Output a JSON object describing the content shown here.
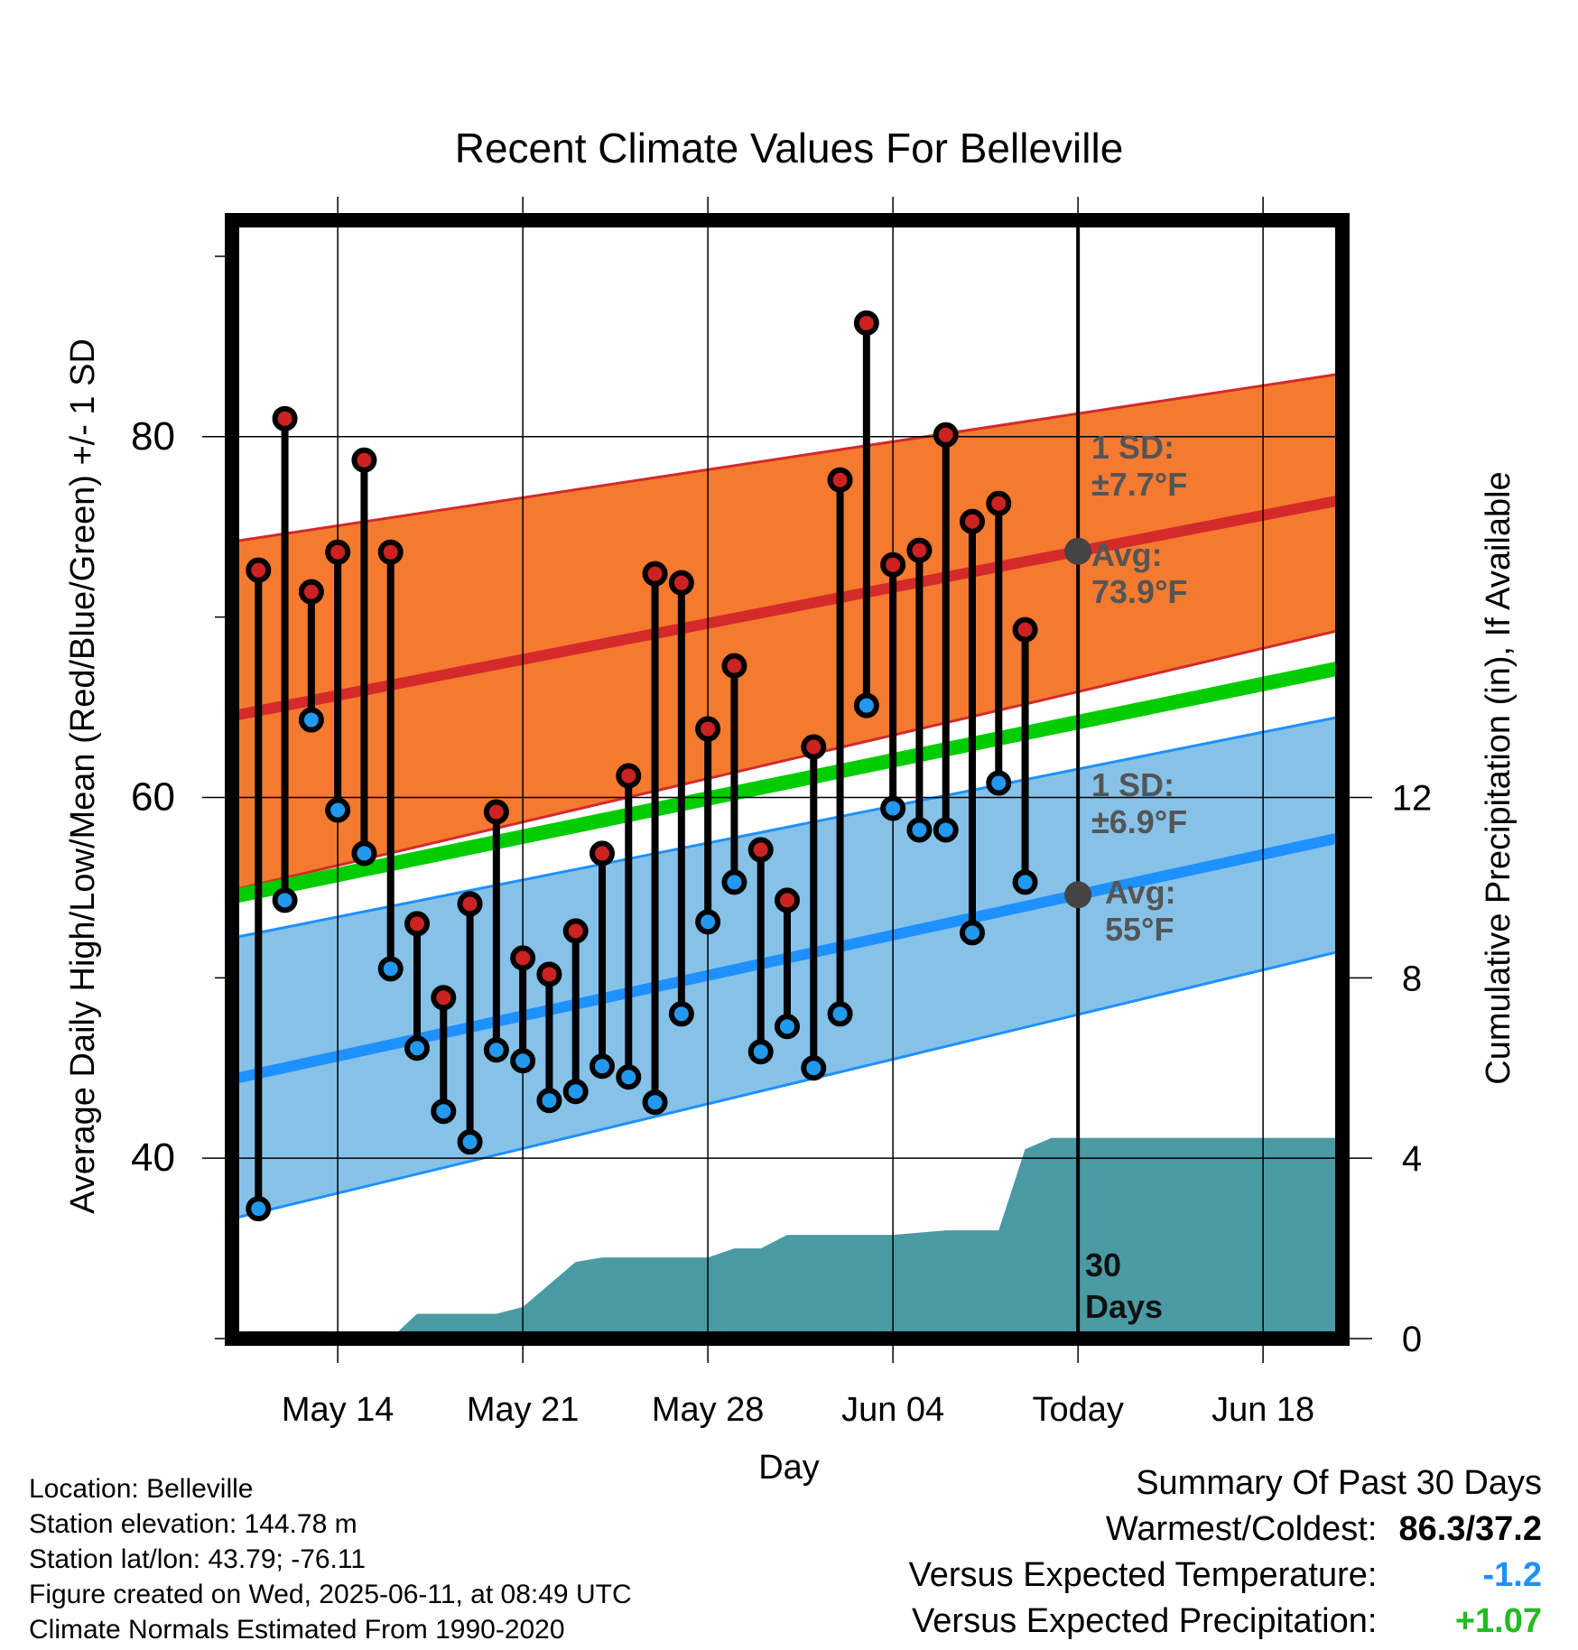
{
  "chart_data": {
    "type": "line",
    "title": "Recent Climate Values For Belleville",
    "xlabel": "Day",
    "ylabel_left": "Average Daily High/Low/Mean (Red/Blue/Green) +/- 1 SD",
    "ylabel_right": "Cumulative Precipitation (in), If Available",
    "x_tick_labels": [
      "May 14",
      "May 21",
      "May 28",
      "Jun 04",
      "Today",
      "Jun 18"
    ],
    "y_left_ticks": [
      40,
      60,
      80
    ],
    "y_left_range": [
      30,
      92
    ],
    "y_right_ticks": [
      0,
      4,
      8,
      12
    ],
    "y_right_range": [
      0,
      24.8
    ],
    "x_range_days": [
      "May 10",
      "Jun 21"
    ],
    "today": "Jun 11",
    "grid": true,
    "colors": {
      "high_band": "#f47a30",
      "high_line": "#d42a2a",
      "low_band": "#86c2e8",
      "low_line": "#1e90ff",
      "mean_line": "#00cc00",
      "precip": "#4a9aa3",
      "high_marker": "#cc2222",
      "low_marker": "#2299ee",
      "annotation": "#555555"
    },
    "normals": {
      "dates": [
        "May 11",
        "Jun 21"
      ],
      "high_mean": [
        64.8,
        76.5
      ],
      "high_upper": [
        74.4,
        83.5
      ],
      "high_lower": [
        55.2,
        69.3
      ],
      "low_mean": [
        44.7,
        57.8
      ],
      "low_upper": [
        52.5,
        64.5
      ],
      "low_lower": [
        37.0,
        51.5
      ],
      "mean": [
        54.8,
        67.2
      ]
    },
    "observed": {
      "dates": [
        "May 11",
        "May 12",
        "May 13",
        "May 14",
        "May 15",
        "May 16",
        "May 17",
        "May 18",
        "May 19",
        "May 20",
        "May 21",
        "May 22",
        "May 23",
        "May 24",
        "May 25",
        "May 26",
        "May 27",
        "May 28",
        "May 29",
        "May 30",
        "May 31",
        "Jun 01",
        "Jun 02",
        "Jun 03",
        "Jun 04",
        "Jun 05",
        "Jun 06",
        "Jun 07",
        "Jun 08",
        "Jun 09",
        "Jun 10"
      ],
      "highs": [
        72.6,
        81.0,
        71.4,
        73.6,
        78.7,
        73.6,
        53.0,
        48.9,
        54.1,
        59.2,
        51.1,
        50.2,
        52.6,
        56.9,
        61.2,
        72.4,
        71.9,
        63.8,
        67.3,
        57.1,
        54.3,
        62.8,
        77.6,
        86.3,
        72.9,
        73.7,
        80.1,
        75.3,
        76.3,
        69.3,
        null
      ],
      "lows": [
        37.2,
        54.3,
        64.3,
        59.3,
        56.9,
        50.5,
        46.1,
        42.6,
        40.9,
        46.0,
        45.4,
        43.2,
        43.7,
        45.1,
        44.5,
        43.1,
        48.0,
        53.1,
        55.3,
        45.9,
        47.3,
        45.0,
        48.0,
        65.1,
        59.4,
        58.2,
        58.2,
        52.5,
        60.8,
        55.3,
        null
      ]
    },
    "precipitation": {
      "dates": [
        "May 10",
        "May 16",
        "May 17",
        "May 18",
        "May 19",
        "May 20",
        "May 21",
        "May 22",
        "May 23",
        "May 24",
        "May 25",
        "May 26",
        "May 27",
        "May 28",
        "May 29",
        "May 30",
        "May 31",
        "Jun 01",
        "Jun 02",
        "Jun 03",
        "Jun 04",
        "Jun 05",
        "Jun 06",
        "Jun 07",
        "Jun 08",
        "Jun 09",
        "Jun 10",
        "Jun 21"
      ],
      "cumulative_in": [
        0,
        0,
        0.55,
        0.55,
        0.55,
        0.55,
        0.7,
        1.2,
        1.7,
        1.8,
        1.8,
        1.8,
        1.8,
        1.8,
        2.0,
        2.0,
        2.3,
        2.3,
        2.3,
        2.3,
        2.3,
        2.35,
        2.4,
        2.4,
        2.4,
        4.2,
        4.45,
        4.45
      ]
    },
    "annotations": {
      "high_sd_label": "1 SD:",
      "high_sd_value": "±7.7°F",
      "high_avg_label": "Avg:",
      "high_avg_value": "73.9°F",
      "low_sd_label": "1 SD:",
      "low_sd_value": "±6.9°F",
      "low_avg_label": "Avg:",
      "low_avg_value": "55°F",
      "days_label_1": "30",
      "days_label_2": "Days"
    }
  },
  "info": {
    "location": "Location: Belleville",
    "elevation": "Station elevation: 144.78 m",
    "latlon": "Station lat/lon: 43.79; -76.11",
    "created": "Figure created on Wed, 2025-06-11, at 08:49 UTC",
    "normals": "Climate Normals Estimated From 1990-2020"
  },
  "summary": {
    "title": "Summary Of Past 30 Days",
    "warm_cold_label": "Warmest/Coldest:",
    "warm_cold_value": "86.3/37.2",
    "temp_label": "Versus Expected Temperature:",
    "temp_value": "-1.2",
    "temp_color": "#1e90ff",
    "precip_label": "Versus Expected Precipitation:",
    "precip_value": "+1.07",
    "precip_color": "#22bb22"
  }
}
